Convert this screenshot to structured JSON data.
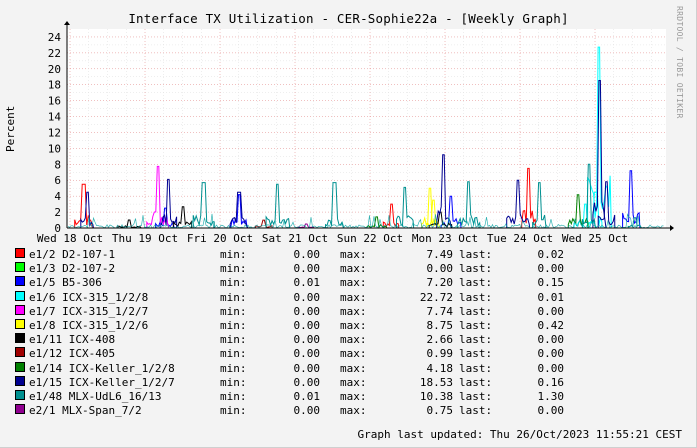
{
  "title": "Interface TX Utilization - CER-Sophie22a - [Weekly Graph]",
  "watermark": "RRDTOOL / TOBI OETIKER",
  "footer": "Graph last updated: Thu 26/Oct/2023 11:55:21 CEST",
  "legend_labels": {
    "min": "min:",
    "max": "max:",
    "last": "last:"
  },
  "chart_data": {
    "type": "area",
    "ylabel": "Percent",
    "ylim": [
      0,
      25
    ],
    "yticks": [
      0,
      2,
      4,
      6,
      8,
      10,
      12,
      14,
      16,
      18,
      20,
      22,
      24
    ],
    "grid": true,
    "legend_position": "bottom",
    "x_labels": [
      "Wed 18 Oct",
      "Thu 19 Oct",
      "Fri 20 Oct",
      "Sat 21 Oct",
      "Sun 22 Oct",
      "Mon 23 Oct",
      "Tue 24 Oct",
      "Wed 25 Oct"
    ],
    "x_range_days": [
      0,
      8.0
    ],
    "series": [
      {
        "name": "e1/2 D2-107-1",
        "color": "#ff0000",
        "min": "0.00",
        "max": "7.49",
        "last": "0.02",
        "points": [
          [
            0.15,
            5.5
          ],
          [
            4.5,
            3.0
          ],
          [
            6.45,
            7.49
          ]
        ]
      },
      {
        "name": "e1/3 D2-107-2",
        "color": "#00ff00",
        "min": "0.00",
        "max": "0.00",
        "last": "0.00",
        "points": []
      },
      {
        "name": "e1/5 B5-306",
        "color": "#0000ff",
        "min": "0.01",
        "max": "7.20",
        "last": "0.15",
        "points": [
          [
            1.3,
            2.5
          ],
          [
            2.35,
            4.2
          ],
          [
            5.35,
            4.0
          ],
          [
            7.9,
            7.2
          ]
        ]
      },
      {
        "name": "e1/6 ICX-315_1/2/8",
        "color": "#00ffff",
        "min": "0.00",
        "max": "22.72",
        "last": "0.01",
        "points": [
          [
            7.45,
            22.72
          ],
          [
            7.4,
            4.5
          ],
          [
            7.25,
            3.0
          ]
        ]
      },
      {
        "name": "e1/7 ICX-315_1/2/7",
        "color": "#ff00ff",
        "min": "0.00",
        "max": "7.74",
        "last": "0.00",
        "points": [
          [
            1.2,
            7.74
          ]
        ]
      },
      {
        "name": "e1/8 ICX-315_1/2/6",
        "color": "#ffff00",
        "min": "0.00",
        "max": "8.75",
        "last": "0.42",
        "points": [
          [
            5.05,
            5.0
          ],
          [
            5.1,
            3.5
          ]
        ]
      },
      {
        "name": "e1/11 ICX-408",
        "color": "#000000",
        "min": "0.00",
        "max": "2.66",
        "last": "0.00",
        "points": [
          [
            0.8,
            1.0
          ],
          [
            1.55,
            2.66
          ],
          [
            5.2,
            2.0
          ]
        ]
      },
      {
        "name": "e1/12 ICX-405",
        "color": "#a00000",
        "min": "0.00",
        "max": "0.99",
        "last": "0.00",
        "points": [
          [
            2.7,
            0.99
          ]
        ]
      },
      {
        "name": "e1/14 ICX-Keller_1/2/8",
        "color": "#008000",
        "min": "0.00",
        "max": "4.18",
        "last": "0.00",
        "points": [
          [
            4.3,
            1.4
          ],
          [
            7.15,
            4.18
          ]
        ]
      },
      {
        "name": "e1/15 ICX-Keller_1/2/7",
        "color": "#000090",
        "min": "0.00",
        "max": "18.53",
        "last": "0.16",
        "points": [
          [
            7.45,
            18.53
          ],
          [
            0.2,
            4.5
          ],
          [
            1.35,
            6.1
          ],
          [
            2.35,
            4.5
          ],
          [
            5.25,
            9.2
          ],
          [
            6.3,
            6.0
          ],
          [
            7.55,
            5.8
          ]
        ]
      },
      {
        "name": "e1/48 MLX-UdL6_16/13",
        "color": "#009090",
        "min": "0.01",
        "max": "10.38",
        "last": "1.30",
        "points": [
          [
            1.85,
            5.7
          ],
          [
            2.9,
            5.5
          ],
          [
            3.7,
            5.7
          ],
          [
            4.7,
            5.1
          ],
          [
            5.6,
            5.8
          ],
          [
            6.6,
            5.7
          ],
          [
            7.3,
            8.0
          ],
          [
            7.95,
            1.3
          ]
        ]
      },
      {
        "name": "e2/1 MLX-Span_7/2",
        "color": "#900090",
        "min": "0.00",
        "max": "0.75",
        "last": "0.00",
        "points": [
          [
            3.3,
            0.5
          ]
        ]
      }
    ]
  }
}
